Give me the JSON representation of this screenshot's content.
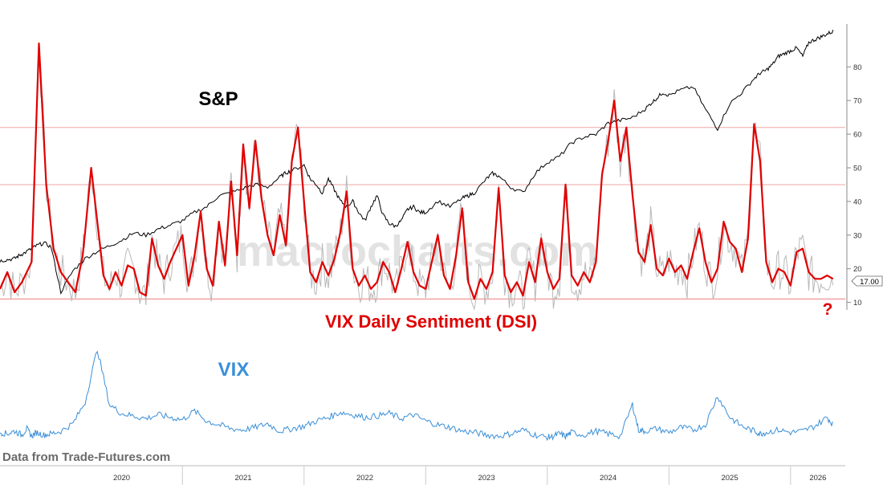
{
  "chart_data": {
    "type": "line",
    "labels": {
      "sp": "S&P",
      "dsi": "VIX Daily Sentiment (DSI)",
      "vix": "VIX",
      "source": "Data from Trade-Futures.com",
      "question": "?",
      "watermark": "macrocharts.com"
    },
    "last_value_label": "17.00",
    "colors": {
      "sp": "#000000",
      "dsi": "#e00000",
      "dsi_raw": "#b9b9b9",
      "vix": "#3a8fd8",
      "ref_line": "#f2a7a7",
      "axis": "#888888"
    },
    "dsi_axis": {
      "ticks": [
        10,
        20,
        30,
        40,
        50,
        60,
        70,
        80
      ],
      "ylim": [
        8,
        92
      ]
    },
    "ref_levels": [
      11,
      45,
      62
    ],
    "x_axis": {
      "xlim": [
        2019.5,
        2026.45
      ],
      "years": [
        "2020",
        "2021",
        "2022",
        "2023",
        "2024",
        "2025",
        "2026"
      ]
    },
    "series": [
      {
        "name": "VIX Daily Sentiment (DSI)",
        "x": [
          2019.5,
          2019.56,
          2019.62,
          2019.68,
          2019.76,
          2019.82,
          2019.88,
          2019.94,
          2020.0,
          2020.06,
          2020.12,
          2020.18,
          2020.2,
          2020.25,
          2020.3,
          2020.35,
          2020.4,
          2020.45,
          2020.5,
          2020.55,
          2020.6,
          2020.65,
          2020.7,
          2020.75,
          2020.8,
          2020.85,
          2020.9,
          2020.95,
          2021.0,
          2021.05,
          2021.1,
          2021.15,
          2021.2,
          2021.25,
          2021.3,
          2021.35,
          2021.4,
          2021.45,
          2021.5,
          2021.55,
          2021.6,
          2021.65,
          2021.7,
          2021.75,
          2021.8,
          2021.85,
          2021.9,
          2021.95,
          2022.0,
          2022.05,
          2022.1,
          2022.15,
          2022.2,
          2022.25,
          2022.3,
          2022.35,
          2022.4,
          2022.45,
          2022.5,
          2022.55,
          2022.6,
          2022.65,
          2022.7,
          2022.75,
          2022.8,
          2022.85,
          2022.9,
          2022.95,
          2023.0,
          2023.05,
          2023.1,
          2023.15,
          2023.2,
          2023.25,
          2023.3,
          2023.35,
          2023.4,
          2023.45,
          2023.5,
          2023.55,
          2023.6,
          2023.65,
          2023.7,
          2023.75,
          2023.8,
          2023.85,
          2023.9,
          2023.95,
          2024.0,
          2024.05,
          2024.1,
          2024.15,
          2024.2,
          2024.25,
          2024.3,
          2024.35,
          2024.4,
          2024.45,
          2024.5,
          2024.55,
          2024.6,
          2024.65,
          2024.7,
          2024.75,
          2024.8,
          2024.85,
          2024.9,
          2024.95,
          2025.0,
          2025.05,
          2025.1,
          2025.15,
          2025.2,
          2025.25,
          2025.3,
          2025.35,
          2025.4,
          2025.45,
          2025.5,
          2025.55,
          2025.6,
          2025.65,
          2025.7,
          2025.75,
          2025.8,
          2025.85,
          2025.9,
          2025.95,
          2026.0,
          2026.05,
          2026.1,
          2026.15,
          2026.2,
          2026.25,
          2026.3,
          2026.35
        ],
        "values": [
          14,
          19,
          13,
          16,
          22,
          87,
          45,
          26,
          19,
          16,
          13,
          24,
          31,
          50,
          34,
          18,
          14,
          19,
          15,
          21,
          20,
          13,
          12,
          29,
          21,
          17,
          22,
          26,
          30,
          15,
          24,
          37,
          20,
          15,
          34,
          21,
          46,
          24,
          57,
          38,
          58,
          41,
          30,
          24,
          36,
          27,
          52,
          62,
          40,
          19,
          16,
          22,
          18,
          23,
          31,
          43,
          20,
          15,
          18,
          14,
          16,
          22,
          19,
          13,
          20,
          28,
          19,
          15,
          14,
          22,
          30,
          18,
          14,
          24,
          38,
          16,
          11,
          17,
          14,
          19,
          44,
          18,
          13,
          16,
          12,
          22,
          16,
          29,
          19,
          14,
          17,
          45,
          18,
          15,
          19,
          16,
          22,
          48,
          58,
          70,
          52,
          62,
          42,
          25,
          22,
          33,
          20,
          18,
          23,
          19,
          21,
          17,
          25,
          32,
          22,
          16,
          20,
          34,
          28,
          26,
          19,
          29,
          63,
          52,
          22,
          16,
          20,
          19,
          15,
          25,
          26,
          19,
          17,
          17,
          18,
          17
        ]
      },
      {
        "name": "S&P",
        "x": [
          2019.5,
          2019.56,
          2019.62,
          2019.66,
          2019.7,
          2019.76,
          2019.8,
          2019.86,
          2019.92,
          2020.0,
          2020.1,
          2020.2,
          2020.3,
          2020.4,
          2020.5,
          2020.6,
          2020.7,
          2020.8,
          2020.9,
          2021.0,
          2021.1,
          2021.2,
          2021.3,
          2021.4,
          2021.5,
          2021.6,
          2021.7,
          2021.8,
          2021.85,
          2021.9,
          2022.0,
          2022.05,
          2022.1,
          2022.15,
          2022.2,
          2022.25,
          2022.3,
          2022.35,
          2022.4,
          2022.45,
          2022.5,
          2022.55,
          2022.6,
          2022.65,
          2022.7,
          2022.75,
          2022.8,
          2022.85,
          2022.9,
          2022.95,
          2023.0,
          2023.1,
          2023.2,
          2023.3,
          2023.35,
          2023.4,
          2023.5,
          2023.55,
          2023.6,
          2023.7,
          2023.8,
          2023.9,
          2024.0,
          2024.1,
          2024.2,
          2024.3,
          2024.4,
          2024.5,
          2024.6,
          2024.7,
          2024.8,
          2024.85,
          2024.9,
          2024.95,
          2025.0,
          2025.1,
          2025.2,
          2025.3,
          2025.4,
          2025.5,
          2025.6,
          2025.7,
          2025.75,
          2025.8,
          2025.85,
          2025.9,
          2025.95,
          2026.0,
          2026.05,
          2026.1,
          2026.15,
          2026.2,
          2026.25,
          2026.3,
          2026.35
        ],
        "values": [
          2980,
          3000,
          3020,
          3080,
          3120,
          3200,
          3250,
          3300,
          3230,
          2420,
          2800,
          3020,
          3150,
          3250,
          3350,
          3480,
          3440,
          3550,
          3620,
          3700,
          3850,
          3950,
          4150,
          4200,
          4280,
          4350,
          4300,
          4480,
          4560,
          4600,
          4700,
          4450,
          4350,
          4200,
          4450,
          4250,
          4050,
          3950,
          4050,
          3850,
          3700,
          3950,
          4150,
          3800,
          3650,
          3600,
          3700,
          3900,
          3950,
          3850,
          3850,
          4050,
          3950,
          4100,
          4150,
          4200,
          4450,
          4550,
          4500,
          4300,
          4200,
          4550,
          4750,
          4850,
          5100,
          5200,
          5250,
          5450,
          5500,
          5550,
          5700,
          5800,
          5900,
          6000,
          5950,
          6050,
          6100,
          5700,
          5350,
          5800,
          6000,
          6250,
          6350,
          6400,
          6500,
          6650,
          6700,
          6750,
          6800,
          6650,
          6900,
          6950,
          7000,
          7050,
          7100
        ]
      },
      {
        "name": "VIX",
        "x": [
          2019.5,
          2019.56,
          2019.62,
          2019.68,
          2019.72,
          2019.76,
          2019.8,
          2019.86,
          2019.92,
          2020.0,
          2020.1,
          2020.2,
          2020.3,
          2020.4,
          2020.5,
          2020.6,
          2020.7,
          2020.8,
          2020.9,
          2021.0,
          2021.1,
          2021.2,
          2021.3,
          2021.4,
          2021.5,
          2021.6,
          2021.7,
          2021.8,
          2021.9,
          2022.0,
          2022.1,
          2022.2,
          2022.3,
          2022.4,
          2022.5,
          2022.6,
          2022.7,
          2022.8,
          2022.9,
          2023.0,
          2023.1,
          2023.2,
          2023.3,
          2023.4,
          2023.5,
          2023.6,
          2023.7,
          2023.8,
          2023.9,
          2024.0,
          2024.05,
          2024.1,
          2024.15,
          2024.2,
          2024.3,
          2024.4,
          2024.5,
          2024.6,
          2024.7,
          2024.75,
          2024.8,
          2024.9,
          2025.0,
          2025.1,
          2025.2,
          2025.3,
          2025.4,
          2025.5,
          2025.6,
          2025.7,
          2025.75,
          2025.8,
          2025.9,
          2026.0,
          2026.1,
          2026.2,
          2026.3,
          2026.35
        ],
        "values": [
          16,
          15,
          17,
          14,
          19,
          13,
          16,
          14,
          15,
          17,
          23,
          40,
          82,
          38,
          31,
          29,
          27,
          30,
          28,
          26,
          33,
          25,
          22,
          19,
          18,
          20,
          23,
          17,
          19,
          21,
          25,
          28,
          32,
          30,
          28,
          29,
          31,
          27,
          30,
          25,
          22,
          20,
          17,
          16,
          14,
          13,
          15,
          18,
          14,
          12,
          13,
          15,
          13,
          16,
          14,
          17,
          15,
          13,
          38,
          18,
          17,
          19,
          16,
          20,
          18,
          22,
          45,
          28,
          21,
          17,
          15,
          16,
          18,
          16,
          17,
          21,
          28,
          22
        ]
      }
    ]
  }
}
